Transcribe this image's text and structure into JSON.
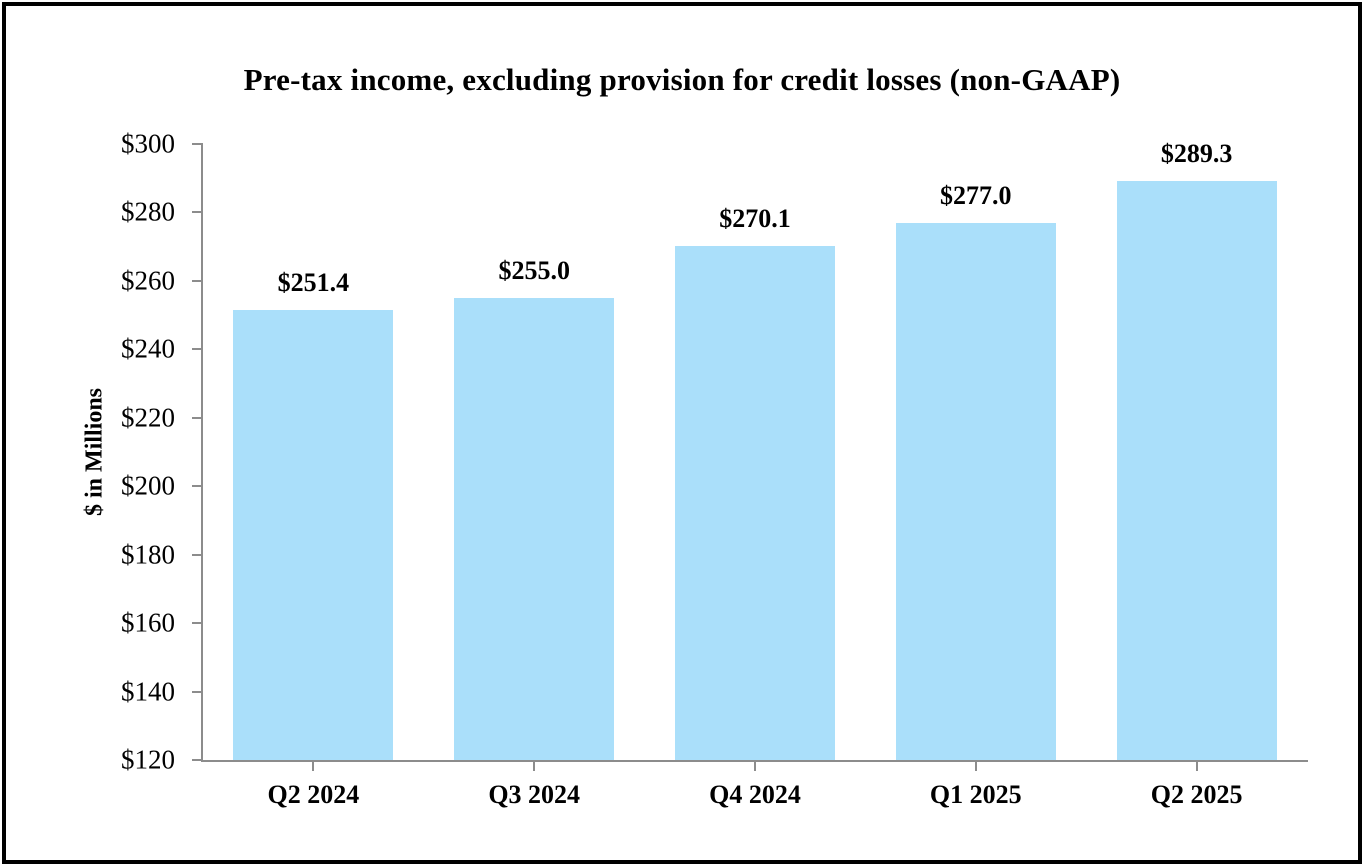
{
  "frame": {
    "border_color": "#000000",
    "background_color": "#ffffff"
  },
  "chart_data": {
    "type": "bar",
    "title": "Pre-tax income, excluding provision for credit losses (non-GAAP)",
    "xlabel": "",
    "ylabel": "$ in Millions",
    "categories": [
      "Q2 2024",
      "Q3 2024",
      "Q4 2024",
      "Q1 2025",
      "Q2 2025"
    ],
    "values": [
      251.4,
      255.0,
      270.1,
      277.0,
      289.3
    ],
    "data_labels": [
      "$251.4",
      "$255.0",
      "$270.1",
      "$277.0",
      "$289.3"
    ],
    "ylim": [
      120,
      300
    ],
    "y_ticks": [
      120,
      140,
      160,
      180,
      200,
      220,
      240,
      260,
      280,
      300
    ],
    "y_tick_labels": [
      "$120",
      "$140",
      "$160",
      "$180",
      "$200",
      "$220",
      "$240",
      "$260",
      "$280",
      "$300"
    ],
    "grid": false,
    "legend_position": "none",
    "bar_color": "#AADFFA",
    "axis_color": "#8C8C8C",
    "text_color": "#000000"
  }
}
